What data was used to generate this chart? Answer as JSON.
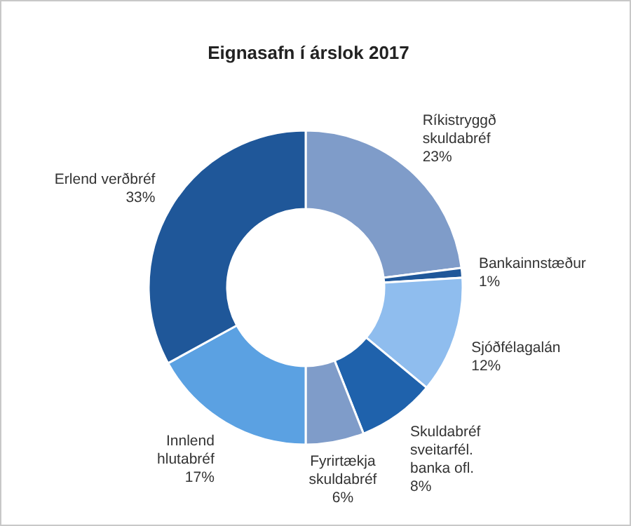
{
  "chart_data": {
    "type": "donut",
    "title": "Eignasafn í árslok 2017",
    "categories": [
      "Ríkistryggð skuldabréf",
      "Bankainnstæður",
      "Sjóðfélagalán",
      "Skuldabréf sveitarfél. banka ofl.",
      "Fyrirtækja skuldabréf",
      "Innlend hlutabréf",
      "Erlend verðbréf"
    ],
    "values": [
      23,
      1,
      12,
      8,
      6,
      17,
      33
    ],
    "value_labels": [
      "23%",
      "1%",
      "12%",
      "8%",
      "6%",
      "17%",
      "33%"
    ],
    "colors": [
      "#7f9cc9",
      "#1f5799",
      "#8fbdee",
      "#1f62ac",
      "#7f9cc9",
      "#5ba1e2",
      "#1f5799"
    ]
  }
}
